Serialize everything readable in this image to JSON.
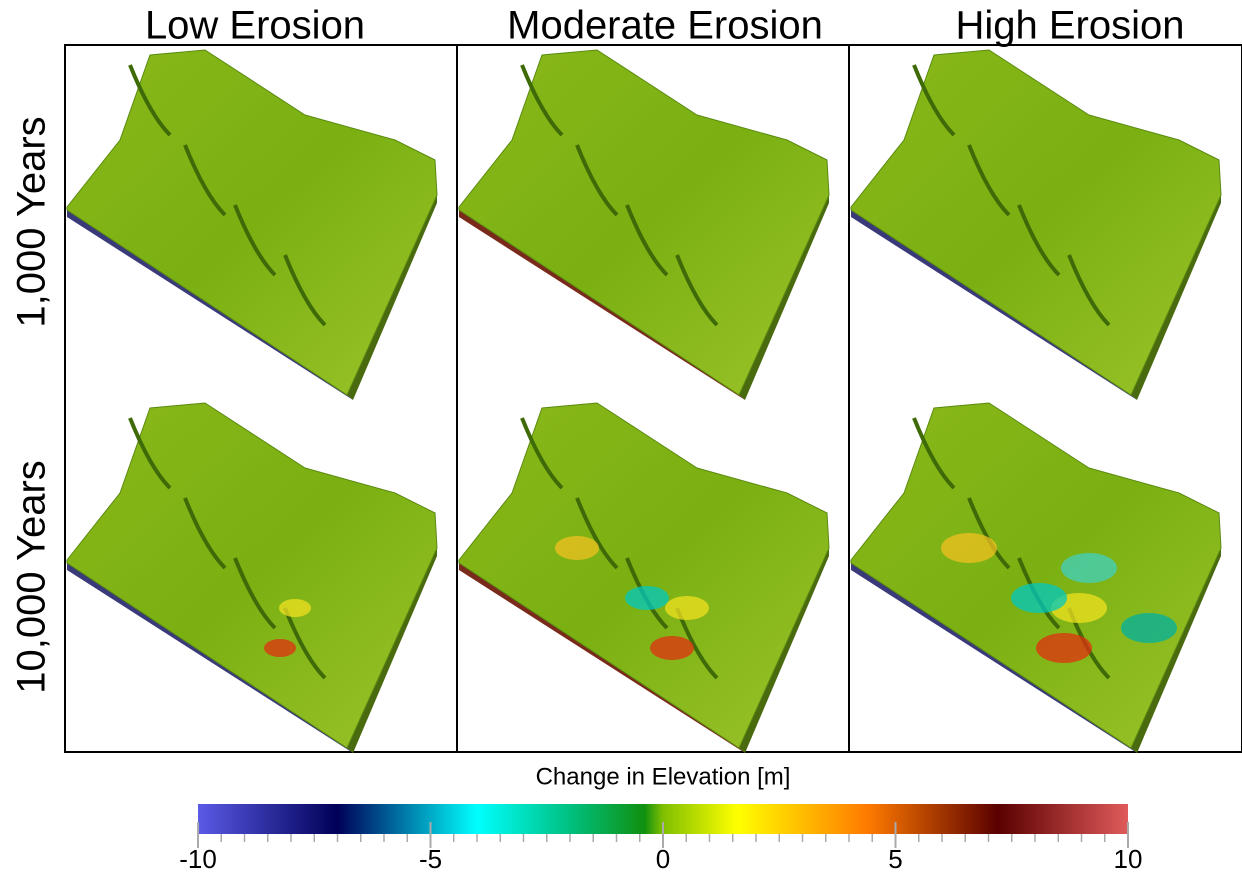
{
  "columns": [
    "Low Erosion",
    "Moderate Erosion",
    "High Erosion"
  ],
  "rows": [
    "1,000 Years",
    "10,000 Years"
  ],
  "colorbar": {
    "title": "Change in Elevation [m]",
    "lim": [
      -10,
      10
    ],
    "ticks": [
      -10,
      -5,
      0,
      5,
      10
    ]
  }
}
